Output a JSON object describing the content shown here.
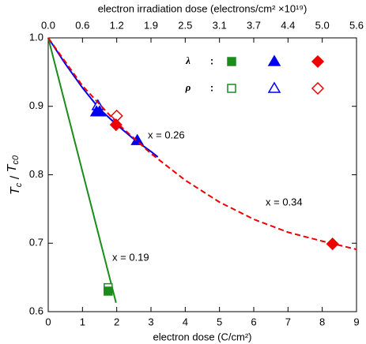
{
  "chart_data": {
    "type": "scatter",
    "xlabel": "electron dose (C/cm²)",
    "x2label": "electron irradiation dose (electrons/cm² ×10¹⁹)",
    "ylabel": [
      "T",
      "c",
      " / ",
      "T",
      "c0"
    ],
    "xlim": [
      0,
      9
    ],
    "xticks": [
      0,
      1,
      2,
      3,
      4,
      5,
      6,
      7,
      8,
      9
    ],
    "x2lim": [
      0,
      5.616
    ],
    "x2ticks": [
      {
        "value": 0,
        "label": "0.0"
      },
      {
        "value": 0.624,
        "label": "0.6"
      },
      {
        "value": 1.248,
        "label": "1.2"
      },
      {
        "value": 1.872,
        "label": "1.9"
      },
      {
        "value": 2.496,
        "label": "2.5"
      },
      {
        "value": 3.12,
        "label": "3.1"
      },
      {
        "value": 3.744,
        "label": "3.7"
      },
      {
        "value": 4.368,
        "label": "4.4"
      },
      {
        "value": 4.992,
        "label": "5.0"
      },
      {
        "value": 5.616,
        "label": "5.6"
      }
    ],
    "ylim": [
      0.6,
      1
    ],
    "yticks": [
      0.6,
      0.7,
      0.8,
      0.9,
      {
        "value": 1,
        "label": "1.0"
      }
    ],
    "legend": {
      "labels": [
        "λ",
        "ρ"
      ],
      "separator": ":"
    },
    "series": [
      {
        "name": "x = 0.19",
        "color": "#1a8c1a",
        "marker": "square",
        "dashed": false,
        "lambda": {
          "x": [
            1.75
          ],
          "y": [
            0.63
          ]
        },
        "rho": {
          "x": [
            1.75
          ],
          "y": [
            0.635
          ]
        },
        "fit": {
          "x": [
            0,
            1.98
          ],
          "y": [
            1,
            0.613
          ]
        }
      },
      {
        "name": "x = 0.26",
        "color": "#0000ee",
        "marker": "triangle",
        "dashed": false,
        "lambda": {
          "x": [
            1.41,
            1.5,
            2.6
          ],
          "y": [
            0.892,
            0.892,
            0.85
          ]
        },
        "rho": {
          "x": [
            1.45
          ],
          "y": [
            0.901
          ]
        },
        "fit": {
          "x": [
            0,
            0.5,
            1,
            1.5,
            2,
            2.5,
            3,
            3.2
          ],
          "y": [
            1,
            0.962,
            0.927,
            0.896,
            0.873,
            0.852,
            0.834,
            0.826
          ]
        }
      },
      {
        "name": "x = 0.34",
        "color": "#ee0000",
        "marker": "diamond",
        "dashed": true,
        "lambda": {
          "x": [
            1.98,
            8.3
          ],
          "y": [
            0.873,
            0.699
          ]
        },
        "rho": {
          "x": [
            2.0
          ],
          "y": [
            0.886
          ]
        },
        "fit": {
          "x": [
            0,
            1,
            2,
            3,
            4,
            5,
            6,
            7,
            8,
            9
          ],
          "y": [
            1,
            0.93,
            0.876,
            0.831,
            0.792,
            0.76,
            0.735,
            0.716,
            0.703,
            0.691
          ]
        }
      }
    ]
  }
}
